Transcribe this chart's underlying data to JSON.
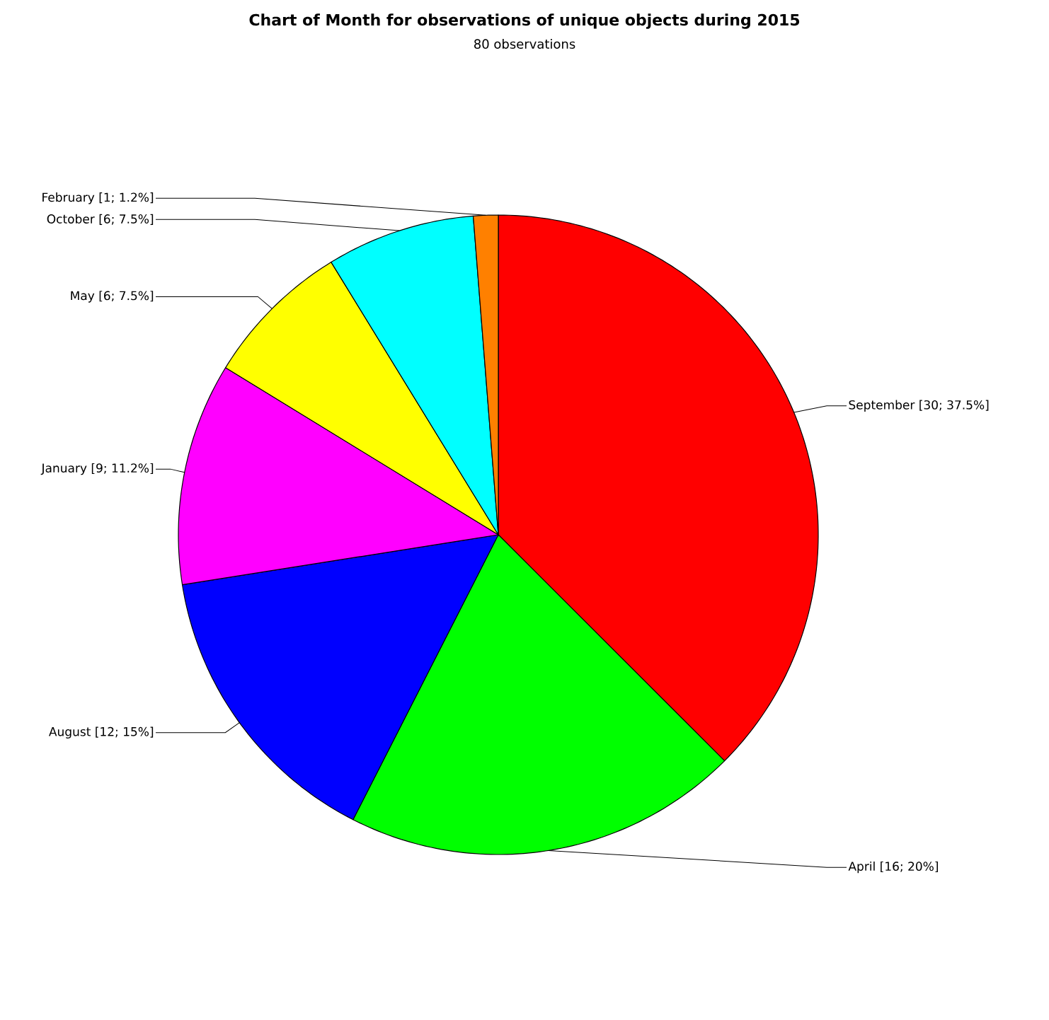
{
  "chart_data": {
    "type": "pie",
    "title": "Chart of Month for observations of unique objects during 2015",
    "subtitle": "80 observations",
    "categories": [
      "September",
      "April",
      "August",
      "January",
      "May",
      "October",
      "February"
    ],
    "values": [
      30,
      16,
      12,
      9,
      6,
      6,
      1
    ],
    "value_labels": [
      "[30; 37.5%]",
      "[16; 20%]",
      "[12; 15%]",
      "[9; 11.2%]",
      "[6; 7.5%]",
      "[6; 7.5%]",
      "[1; 1.2%]"
    ],
    "colors": [
      "#ff0000",
      "#00ff00",
      "#0000ff",
      "#ff00ff",
      "#ffff00",
      "#00ffff",
      "#ff8000"
    ]
  }
}
